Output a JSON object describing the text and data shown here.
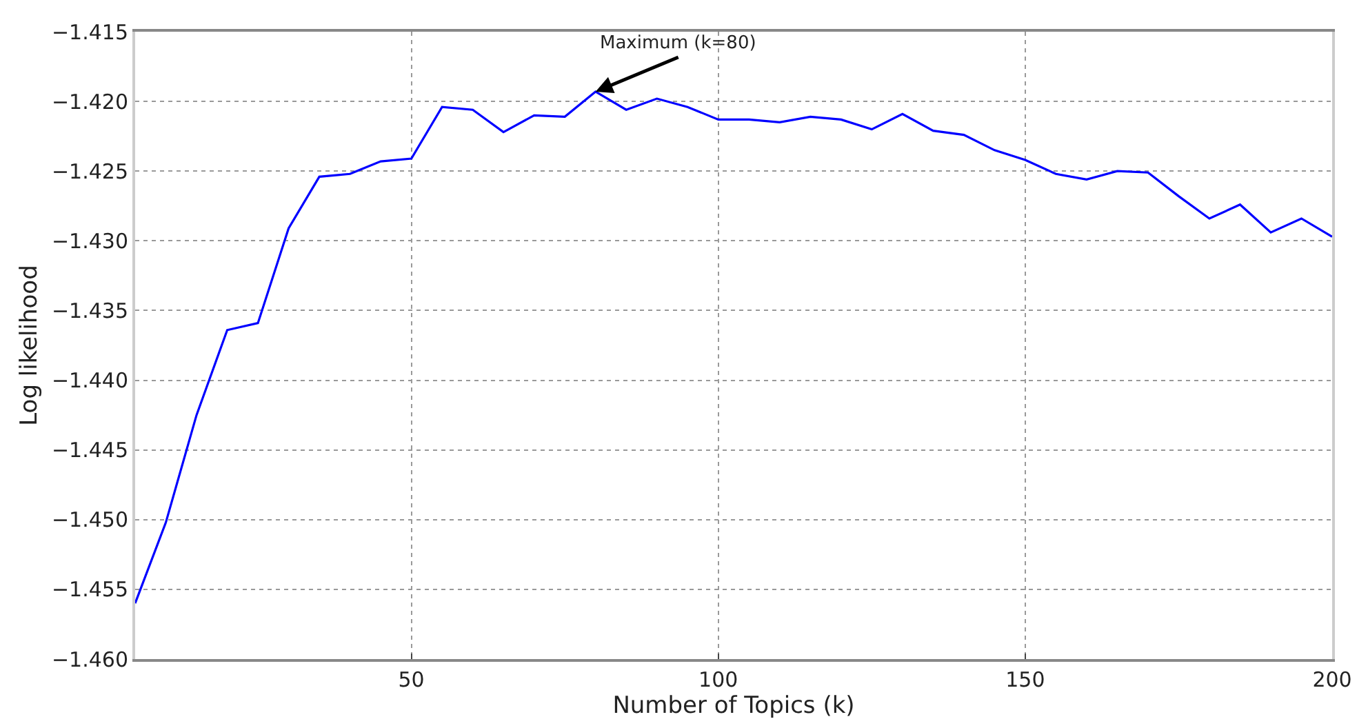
{
  "chart_data": {
    "type": "line",
    "xlabel": "Number of Topics (k)",
    "ylabel": "Log likelihood",
    "x": [
      5,
      10,
      15,
      20,
      25,
      30,
      35,
      40,
      45,
      50,
      55,
      60,
      65,
      70,
      75,
      80,
      85,
      90,
      95,
      100,
      105,
      110,
      115,
      120,
      125,
      130,
      135,
      140,
      145,
      150,
      155,
      160,
      165,
      170,
      175,
      180,
      185,
      190,
      195,
      200
    ],
    "series": [
      {
        "color": "#0000ff",
        "values": [
          -1.456,
          -1.4502,
          -1.4425,
          -1.4364,
          -1.4359,
          -1.4291,
          -1.4254,
          -1.4252,
          -1.4243,
          -1.4241,
          -1.4204,
          -1.4206,
          -1.4222,
          -1.421,
          -1.4211,
          -1.4193,
          -1.4206,
          -1.4198,
          -1.4204,
          -1.4213,
          -1.4213,
          -1.4215,
          -1.4211,
          -1.4213,
          -1.422,
          -1.4209,
          -1.4221,
          -1.4224,
          -1.4235,
          -1.4242,
          -1.4252,
          -1.4256,
          -1.425,
          -1.4251,
          -1.4268,
          -1.4284,
          -1.4274,
          -1.4294,
          -1.4284,
          -1.4297
        ]
      }
    ],
    "xlim": [
      5,
      200
    ],
    "xticks": [
      50,
      100,
      150,
      200
    ],
    "ylim": [
      -1.46,
      -1.415
    ],
    "yticks": [
      {
        "value": -1.46,
        "label": "−1.460"
      },
      {
        "value": -1.455,
        "label": "−1.455"
      },
      {
        "value": -1.45,
        "label": "−1.450"
      },
      {
        "value": -1.445,
        "label": "−1.445"
      },
      {
        "value": -1.44,
        "label": "−1.440"
      },
      {
        "value": -1.435,
        "label": "−1.435"
      },
      {
        "value": -1.43,
        "label": "−1.430"
      },
      {
        "value": -1.425,
        "label": "−1.425"
      },
      {
        "value": -1.42,
        "label": "−1.420"
      },
      {
        "value": -1.415,
        "label": "−1.415"
      }
    ],
    "annotations": [
      {
        "text": "Maximum (k=80)",
        "x": 80,
        "y": -1.4193
      }
    ],
    "grid": true,
    "marker": "none",
    "line_style": "solid"
  }
}
